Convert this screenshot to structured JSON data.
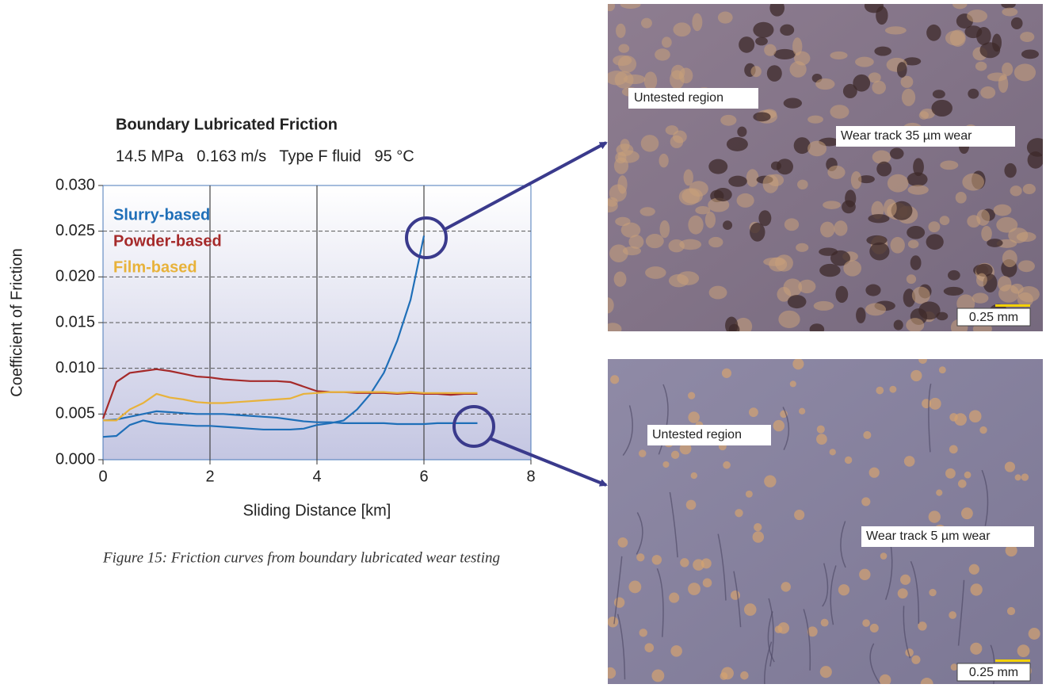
{
  "chart_data": {
    "type": "line",
    "title": "Boundary Lubricated Friction",
    "subtitle": "14.5 MPa   0.163 m/s   Type F fluid   95 °C",
    "x_label": "Sliding Distance [km]",
    "y_label": "Coefficient of Friction",
    "x": [
      0,
      0.25,
      0.5,
      0.75,
      1,
      1.25,
      1.5,
      1.75,
      2,
      2.25,
      2.5,
      2.75,
      3,
      3.25,
      3.5,
      3.75,
      4,
      4.25,
      4.5,
      4.75,
      5,
      5.25,
      5.5,
      5.75,
      6,
      6.25,
      6.5,
      6.75,
      7
    ],
    "series": [
      {
        "name": "Slurry-based",
        "color": "#1f6fb8",
        "values": [
          0.0025,
          0.0026,
          0.0038,
          0.0043,
          0.004,
          0.0039,
          0.0038,
          0.0037,
          0.0037,
          0.0036,
          0.0035,
          0.0034,
          0.0033,
          0.0033,
          0.0033,
          0.0034,
          0.0038,
          0.004,
          0.0043,
          0.0055,
          0.0072,
          0.0095,
          0.013,
          0.0175,
          0.0245,
          null,
          null,
          null,
          null
        ]
      },
      {
        "color": "#1f6fb8",
        "values": [
          0.0043,
          0.0044,
          0.0047,
          0.005,
          0.0053,
          0.0052,
          0.0051,
          0.005,
          0.005,
          0.005,
          0.0049,
          0.0048,
          0.0047,
          0.0046,
          0.0044,
          0.0042,
          0.0041,
          0.0041,
          0.004,
          0.004,
          0.004,
          0.004,
          0.0039,
          0.0039,
          0.0039,
          0.004,
          0.004,
          0.004,
          0.004
        ]
      },
      {
        "name": "Powder-based",
        "color": "#a52a2a",
        "values": [
          0.0045,
          0.0085,
          0.0095,
          0.0097,
          0.0099,
          0.0097,
          0.0094,
          0.0091,
          0.009,
          0.0088,
          0.0087,
          0.0086,
          0.0086,
          0.0086,
          0.0085,
          0.008,
          0.0075,
          0.0074,
          0.0074,
          0.0073,
          0.0073,
          0.0073,
          0.0072,
          0.0073,
          0.0072,
          0.0072,
          0.0071,
          0.0072,
          0.0072
        ]
      },
      {
        "name": "Film-based",
        "color": "#e8b23a",
        "values": [
          0.0043,
          0.0043,
          0.0055,
          0.0062,
          0.0072,
          0.0068,
          0.0066,
          0.0063,
          0.0062,
          0.0062,
          0.0063,
          0.0064,
          0.0065,
          0.0066,
          0.0067,
          0.0072,
          0.0073,
          0.0074,
          0.0074,
          0.0074,
          0.0074,
          0.0074,
          0.0073,
          0.0074,
          0.0073,
          0.0073,
          0.0073,
          0.0073,
          0.0073
        ]
      }
    ],
    "xlim": [
      0,
      8
    ],
    "xticks": [
      0,
      2,
      4,
      6,
      8
    ],
    "ylim": [
      0,
      0.03
    ],
    "yticks": [
      {
        "value": 0,
        "label": "0.000"
      },
      {
        "value": 0.005,
        "label": "0.005"
      },
      {
        "value": 0.01,
        "label": "0.010"
      },
      {
        "value": 0.015,
        "label": "0.015"
      },
      {
        "value": 0.02,
        "label": "0.020"
      },
      {
        "value": 0.025,
        "label": "0.025"
      },
      {
        "value": 0.03,
        "label": "0.030"
      }
    ],
    "grid": true,
    "legend": "upper left"
  },
  "caption": "Figure 15: Friction curves from boundary lubricated wear testing",
  "micrographs": [
    {
      "untested": "Untested region",
      "wear": "Wear track 35 µm wear",
      "scale": "0.25 mm"
    },
    {
      "untested": "Untested region",
      "wear": "Wear track 5 µm wear",
      "scale": "0.25 mm"
    }
  ]
}
